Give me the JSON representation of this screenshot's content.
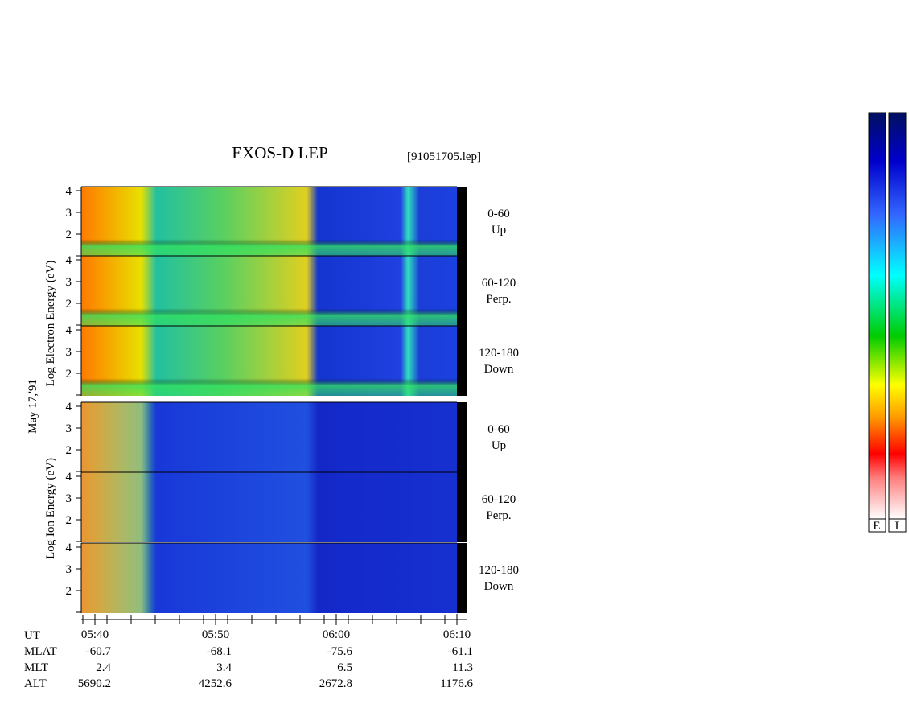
{
  "header": {
    "title": "EXOS-D LEP",
    "file": "[91051705.lep]"
  },
  "axis": {
    "electron_label": "Log   Electron   Energy (eV)",
    "ion_label": "Log   Ion   Energy (eV)",
    "date": "May 17,'91",
    "energy_ticks": [
      "4",
      "3",
      "2"
    ]
  },
  "panels": [
    {
      "range": "0-60",
      "dir": "Up"
    },
    {
      "range": "60-120",
      "dir": "Perp."
    },
    {
      "range": "120-180",
      "dir": "Down"
    }
  ],
  "time_ticks": [
    "05:40",
    "05:50",
    "06:00",
    "06:10"
  ],
  "ephemeris": {
    "rows": [
      {
        "name": "UT"
      },
      {
        "name": "MLAT",
        "values": [
          "-60.7",
          "-68.1",
          "-75.6",
          "-61.1"
        ]
      },
      {
        "name": "MLT",
        "values": [
          "2.4",
          "3.4",
          "6.5",
          "11.3"
        ]
      },
      {
        "name": "ALT",
        "values": [
          "5690.2",
          "4252.6",
          "2672.8",
          "1176.6"
        ]
      }
    ]
  },
  "colorbars": [
    "E",
    "I"
  ]
}
